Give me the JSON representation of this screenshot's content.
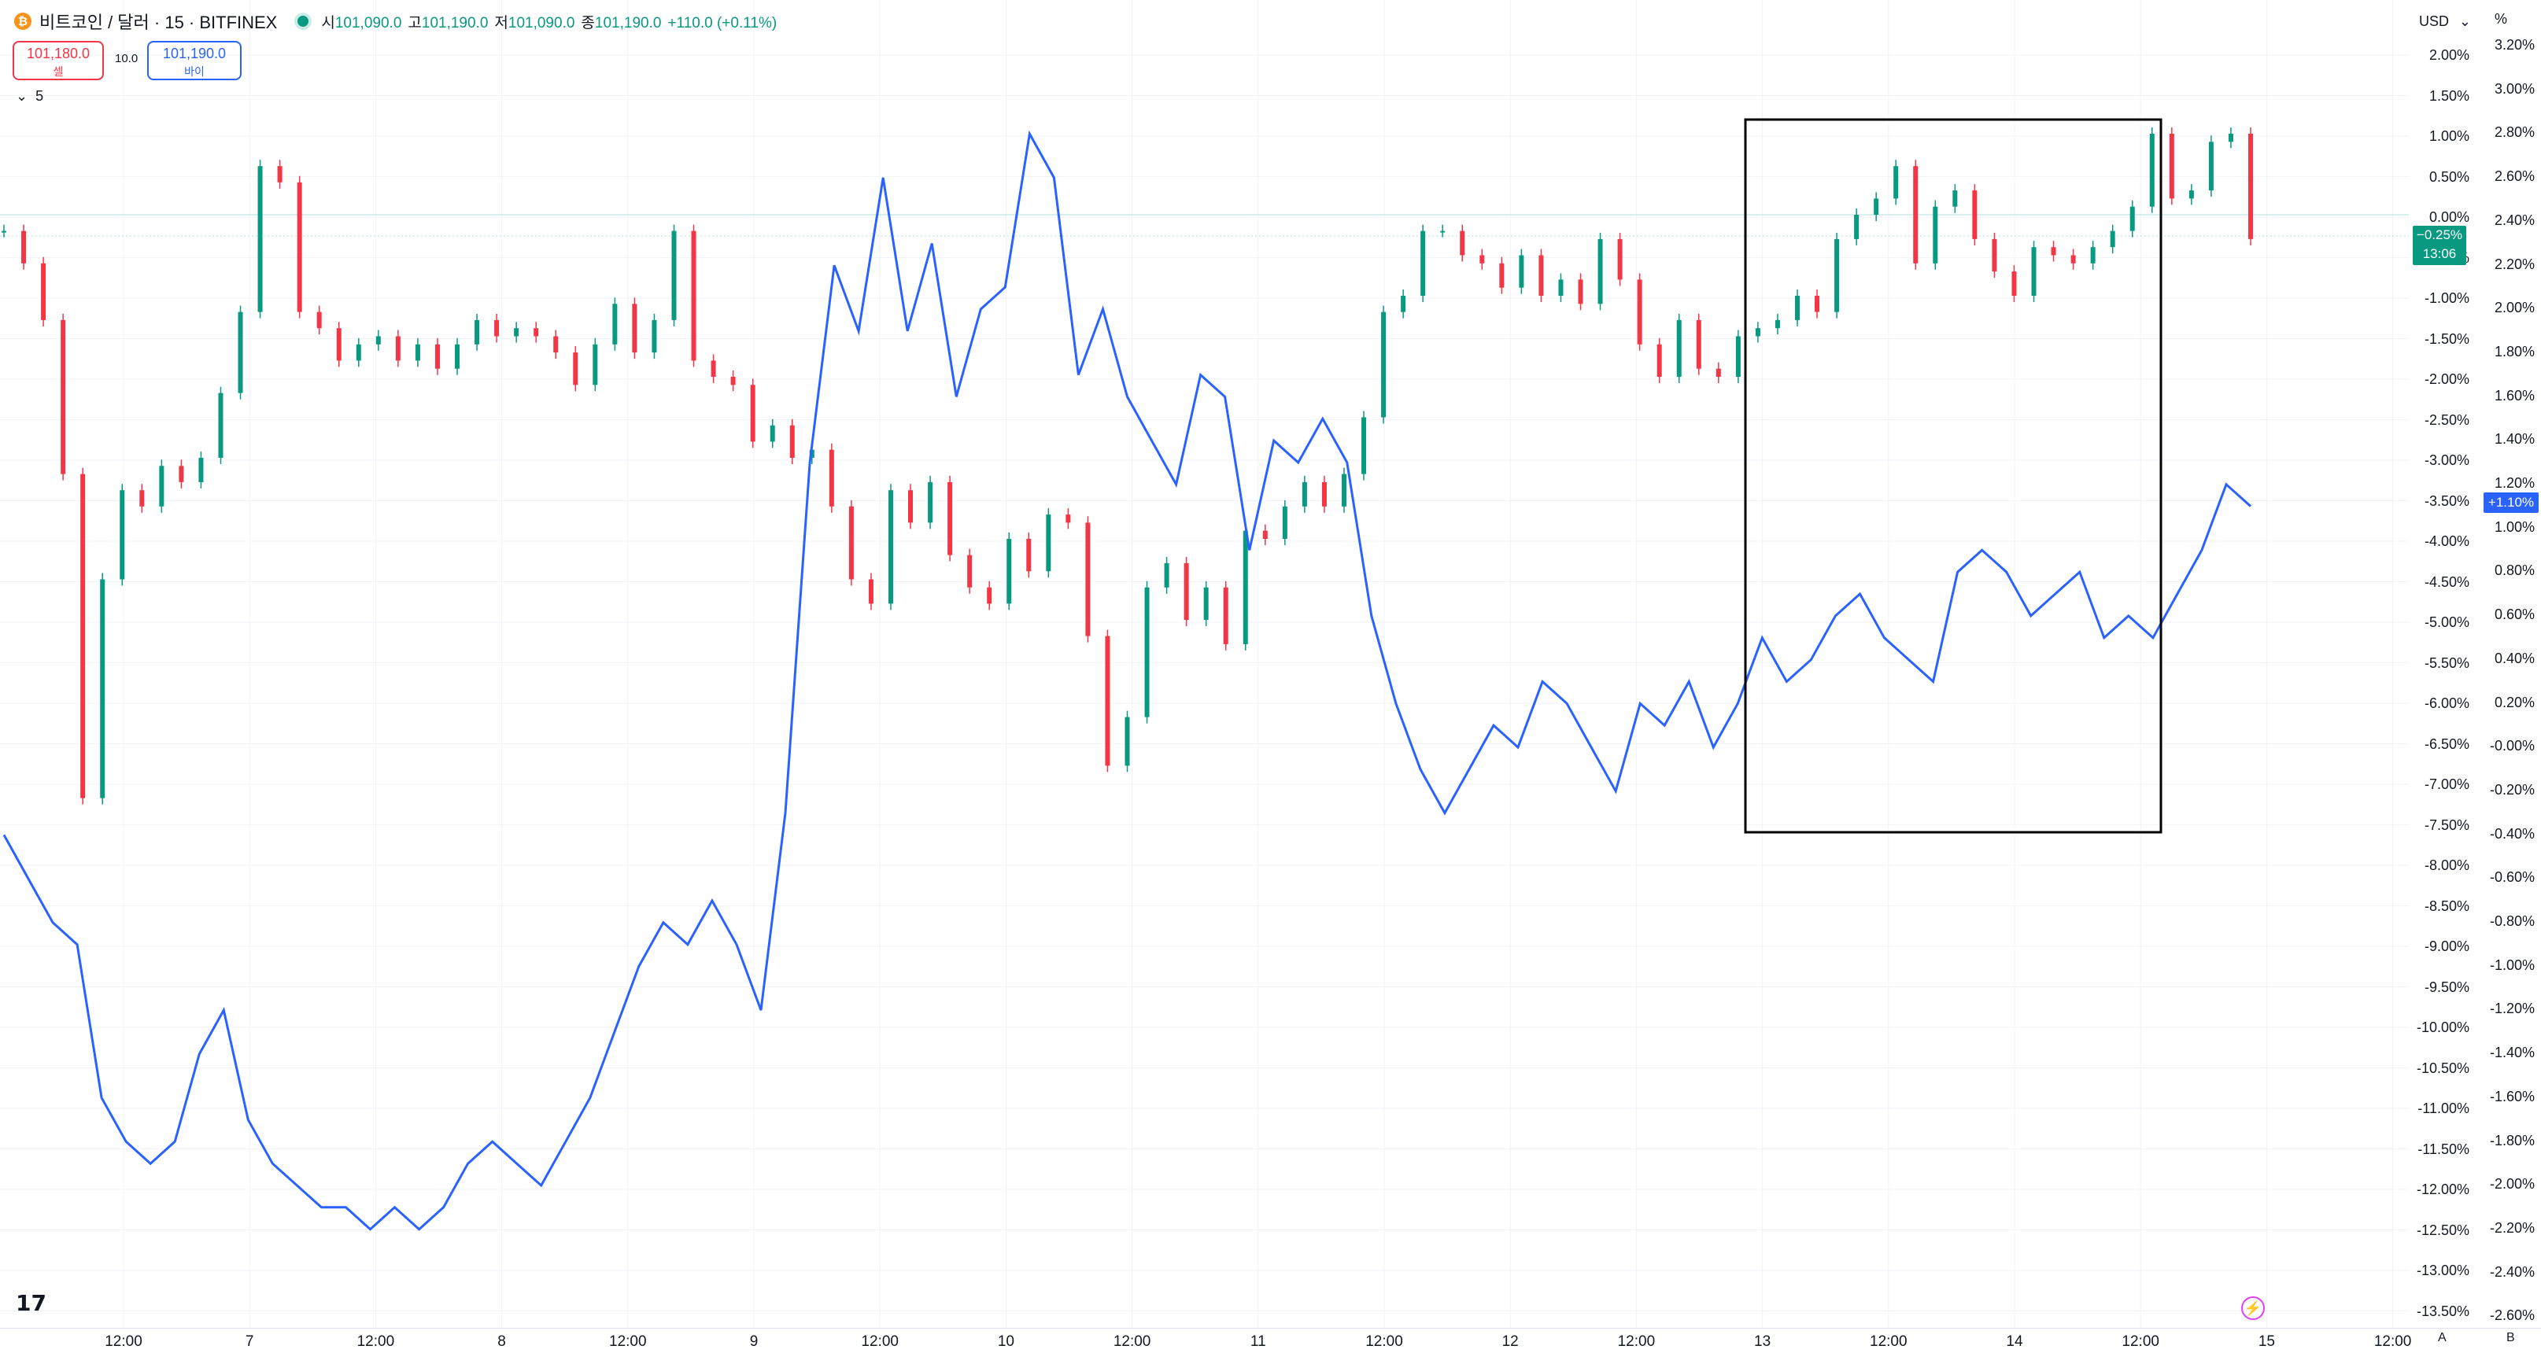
{
  "header": {
    "coin_icon_glyph": "₿",
    "symbol": "비트코인 / 달러 · 15 · BITFINEX",
    "ohlc": [
      {
        "label": "시",
        "value": "101,090.0"
      },
      {
        "label": "고",
        "value": "101,190.0"
      },
      {
        "label": "저",
        "value": "101,090.0"
      },
      {
        "label": "종",
        "value": "101,190.0"
      },
      {
        "label": "",
        "value": "+110.0 (+0.11%)"
      }
    ],
    "market_status_color": "#089981"
  },
  "trade": {
    "sell_price": "101,180.0",
    "sell_label": "셀",
    "spread": "10.0",
    "buy_price": "101,190.0",
    "buy_label": "바이"
  },
  "interval_toggle": "5",
  "currency_selector": "USD",
  "pct_label": "%",
  "last_price_tag": {
    "pct": "−0.25%",
    "countdown": "13:06"
  },
  "compare_tag": "+1.10%",
  "axis_left_labels": [
    "2.00%",
    "1.50%",
    "1.00%",
    "0.50%",
    "0.00%",
    "-0.50%",
    "-1.00%",
    "-1.50%",
    "-2.00%",
    "-2.50%",
    "-3.00%",
    "-3.50%",
    "-4.00%",
    "-4.50%",
    "-5.00%",
    "-5.50%",
    "-6.00%",
    "-6.50%",
    "-7.00%",
    "-7.50%",
    "-8.00%",
    "-8.50%",
    "-9.00%",
    "-9.50%",
    "-10.00%",
    "-10.50%",
    "-11.00%",
    "-11.50%",
    "-12.00%",
    "-12.50%",
    "-13.00%",
    "-13.50%"
  ],
  "axis_right_labels": [
    "3.20%",
    "3.00%",
    "2.80%",
    "2.60%",
    "2.40%",
    "2.20%",
    "2.00%",
    "1.80%",
    "1.60%",
    "1.40%",
    "1.20%",
    "1.00%",
    "0.80%",
    "0.60%",
    "0.40%",
    "0.20%",
    "-0.00%",
    "-0.20%",
    "-0.40%",
    "-0.60%",
    "-0.80%",
    "-1.00%",
    "-1.20%",
    "-1.40%",
    "-1.60%",
    "-1.80%",
    "-2.00%",
    "-2.20%",
    "-2.40%",
    "-2.60%"
  ],
  "time_axis": [
    "12:00",
    "7",
    "12:00",
    "8",
    "12:00",
    "9",
    "12:00",
    "10",
    "12:00",
    "11",
    "12:00",
    "12",
    "12:00",
    "13",
    "12:00",
    "14",
    "12:00",
    "15",
    "12:00"
  ],
  "bottom_buttons": {
    "a": "A",
    "b": "B"
  },
  "logo_text": "17",
  "colors": {
    "up": "#089981",
    "down": "#f23645",
    "compare": "#2962ff",
    "highlight_box": "#000000"
  },
  "chart_data": {
    "type": "line",
    "series": [
      {
        "values": [
          -0.2,
          -0.6,
          -1.3,
          -3.2,
          -7.2,
          -4.5,
          -3.4,
          -3.6,
          -3.1,
          -3.3,
          -3.0,
          -2.2,
          -1.2,
          0.6,
          0.4,
          -1.2,
          -1.4,
          -1.8,
          -1.6,
          -1.5,
          -1.8,
          -1.6,
          -1.9,
          -1.6,
          -1.3,
          -1.5,
          -1.4,
          -1.5,
          -1.7,
          -2.1,
          -1.6,
          -1.1,
          -1.7,
          -1.3,
          -0.2,
          -1.8,
          -2.0,
          -2.1,
          -2.8,
          -2.6,
          -3.0,
          -2.9,
          -3.6,
          -4.5,
          -4.8,
          -3.4,
          -3.8,
          -3.3,
          -4.2,
          -4.6,
          -4.8,
          -4.0,
          -4.4,
          -3.7,
          -3.8,
          -5.2,
          -6.8,
          -6.2,
          -4.6,
          -4.3,
          -5.0,
          -4.6,
          -5.3,
          -3.9,
          -4.0,
          -3.6,
          -3.3,
          -3.6,
          -3.2,
          -2.5,
          -1.2,
          -1.0,
          -0.2,
          -0.2,
          -0.5,
          -0.6,
          -0.9,
          -0.5,
          -1.0,
          -0.8,
          -1.1,
          -0.3,
          -0.8,
          -1.6,
          -2.0,
          -1.3,
          -1.9,
          -2.0,
          -1.5,
          -1.4,
          -1.3,
          -1.0,
          -1.2,
          -0.3,
          0.0,
          0.2,
          0.6,
          -0.6,
          0.1,
          0.3,
          -0.3,
          -0.7,
          -1.0,
          -0.4,
          -0.5,
          -0.6,
          -0.4,
          -0.2,
          0.1,
          1.0,
          0.2,
          0.3,
          0.9,
          1.0,
          -0.3
        ]
      },
      {
        "values": [
          -0.4,
          -0.6,
          -0.8,
          -0.9,
          -1.6,
          -1.8,
          -1.9,
          -1.8,
          -1.4,
          -1.2,
          -1.7,
          -1.9,
          -2.0,
          -2.1,
          -2.1,
          -2.2,
          -2.1,
          -2.2,
          -2.1,
          -1.9,
          -1.8,
          -1.9,
          -2.0,
          -1.8,
          -1.6,
          -1.3,
          -1.0,
          -0.8,
          -0.9,
          -0.7,
          -0.9,
          -1.2,
          -0.3,
          1.3,
          2.2,
          1.9,
          2.6,
          1.9,
          2.3,
          1.6,
          2.0,
          2.1,
          2.8,
          2.6,
          1.7,
          2.0,
          1.6,
          1.4,
          1.2,
          1.7,
          1.6,
          0.9,
          1.4,
          1.3,
          1.5,
          1.3,
          0.6,
          0.2,
          -0.1,
          -0.3,
          -0.1,
          0.1,
          0.0,
          0.3,
          0.2,
          0.0,
          -0.2,
          0.2,
          0.1,
          0.3,
          0.0,
          0.2,
          0.5,
          0.3,
          0.4,
          0.6,
          0.7,
          0.5,
          0.4,
          0.3,
          0.8,
          0.9,
          0.8,
          0.6,
          0.7,
          0.8,
          0.5,
          0.6,
          0.5,
          0.7,
          0.9,
          1.2,
          1.1
        ]
      }
    ],
    "xlabel": "",
    "ylabel": ""
  }
}
